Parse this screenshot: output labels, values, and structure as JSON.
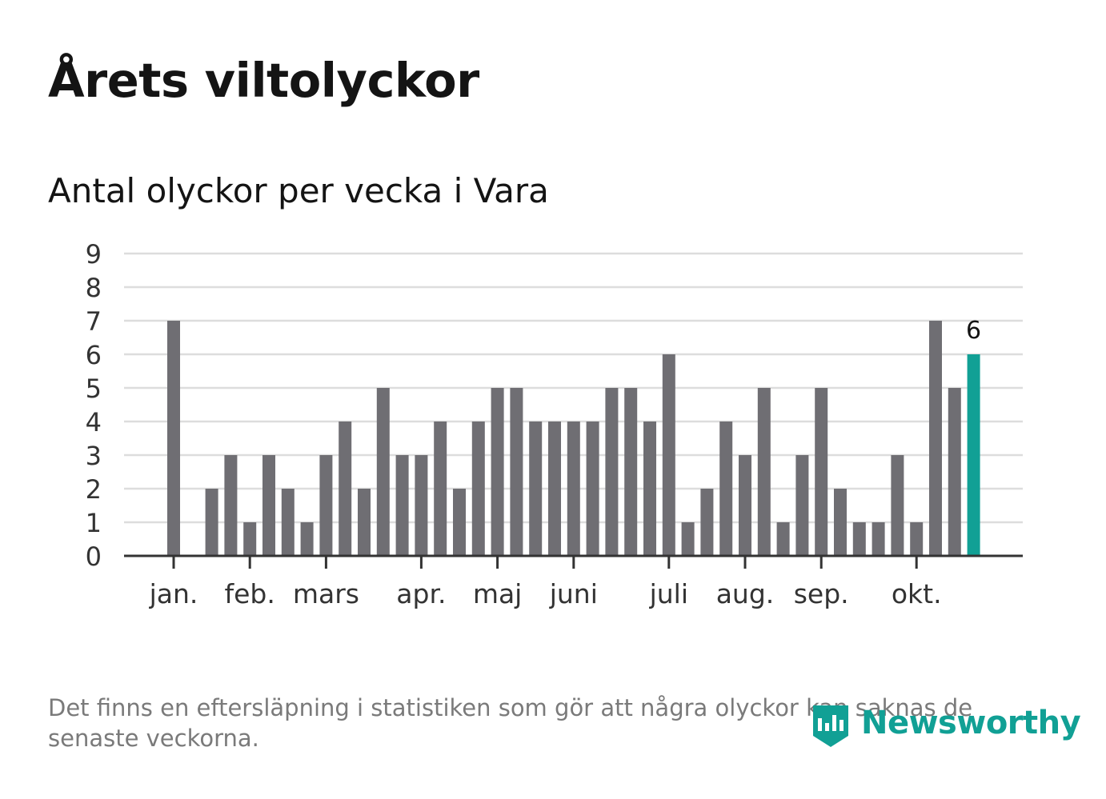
{
  "title": "Årets viltolyckor",
  "subtitle": "Antal olyckor per vecka i Vara",
  "footnote": "Det finns en eftersläpning i statistiken som gör att några olyckor kan saknas de senaste veckorna.",
  "brand": {
    "name": "Newsworthy",
    "color": "#11a095"
  },
  "colors": {
    "bar": "#6f6e73",
    "highlight": "#11a095",
    "grid": "#dddddd",
    "axis": "#333333"
  },
  "chart_data": {
    "type": "bar",
    "title": "Antal olyckor per vecka i Vara",
    "xlabel": "",
    "ylabel": "",
    "ylim": [
      0,
      9
    ],
    "yticks": [
      0,
      1,
      2,
      3,
      4,
      5,
      6,
      7,
      8,
      9
    ],
    "grid": true,
    "weeks": [
      1,
      2,
      3,
      4,
      5,
      6,
      7,
      8,
      9,
      10,
      11,
      12,
      13,
      14,
      15,
      16,
      17,
      18,
      19,
      20,
      21,
      22,
      23,
      24,
      25,
      26,
      27,
      28,
      29,
      30,
      31,
      32,
      33,
      34,
      35,
      36,
      37,
      38,
      39,
      40,
      41,
      42,
      43
    ],
    "values": [
      7,
      0,
      2,
      3,
      1,
      3,
      2,
      1,
      3,
      4,
      2,
      5,
      3,
      3,
      4,
      2,
      4,
      5,
      5,
      4,
      4,
      4,
      4,
      5,
      5,
      4,
      6,
      1,
      2,
      4,
      3,
      5,
      1,
      3,
      5,
      2,
      1,
      1,
      3,
      1,
      7,
      5,
      6
    ],
    "highlight_index": 42,
    "highlight_label": "6",
    "month_ticks": [
      {
        "label": "jan.",
        "at_week": 1
      },
      {
        "label": "feb.",
        "at_week": 5
      },
      {
        "label": "mars",
        "at_week": 9
      },
      {
        "label": "apr.",
        "at_week": 14
      },
      {
        "label": "maj",
        "at_week": 18
      },
      {
        "label": "juni",
        "at_week": 22
      },
      {
        "label": "juli",
        "at_week": 27
      },
      {
        "label": "aug.",
        "at_week": 31
      },
      {
        "label": "sep.",
        "at_week": 35
      },
      {
        "label": "okt.",
        "at_week": 40
      }
    ]
  }
}
